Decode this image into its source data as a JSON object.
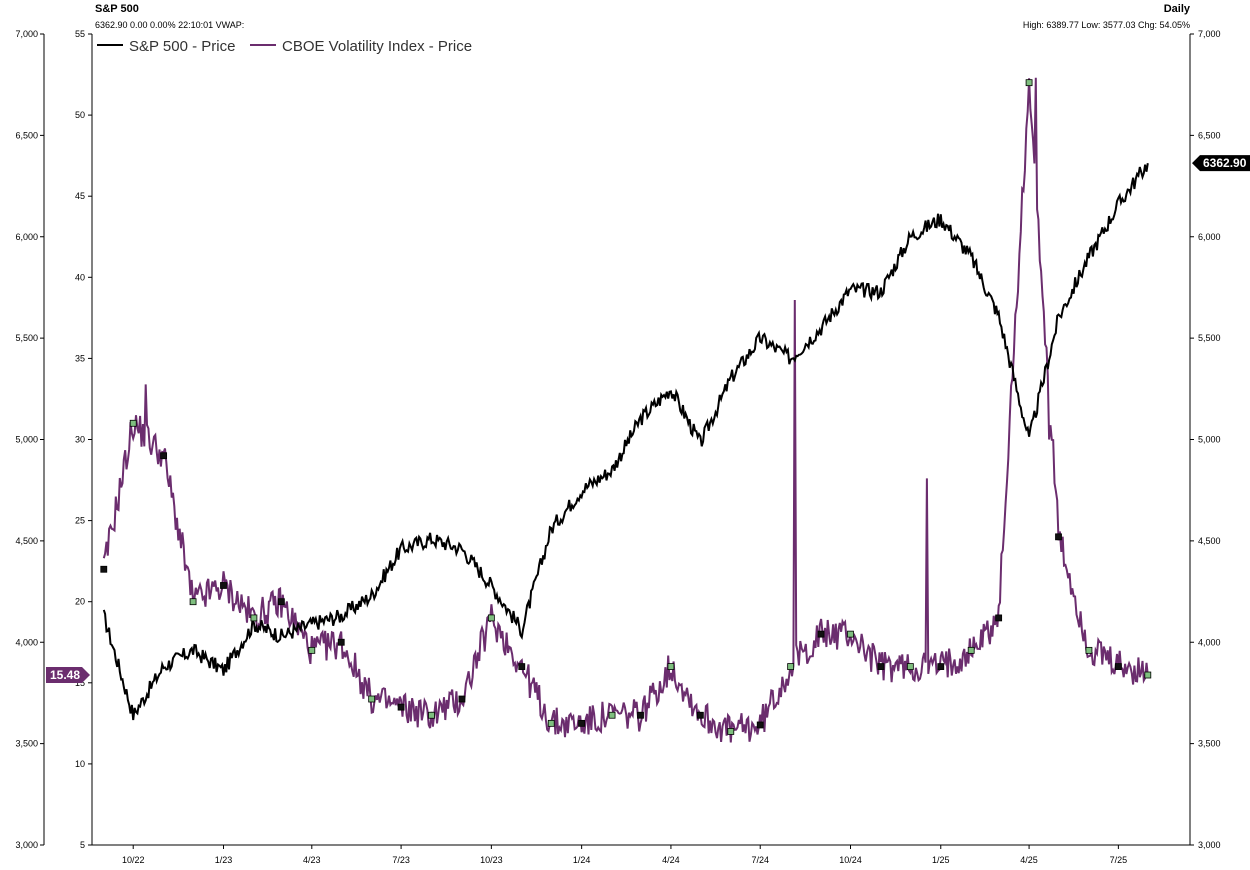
{
  "header": {
    "title": "S&P 500",
    "subtitle": "6362.90 0.00 0.00% 22:10:01 VWAP:",
    "frequency": "Daily",
    "stats": "High: 6389.77 Low: 3577.03 Chg: 54.05%"
  },
  "colors": {
    "spx": "#000000",
    "vix": "#6b2d6e",
    "axis": "#000000",
    "marker_fill": "#7fbf7f"
  },
  "chart_data": {
    "type": "line",
    "grid": false,
    "legend_placement": "top-left",
    "x": [
      "2022-09-01",
      "2022-10-01",
      "2022-11-01",
      "2022-12-01",
      "2023-01-01",
      "2023-02-01",
      "2023-03-01",
      "2023-04-01",
      "2023-05-01",
      "2023-06-01",
      "2023-07-01",
      "2023-08-01",
      "2023-09-01",
      "2023-10-01",
      "2023-11-01",
      "2023-12-01",
      "2024-01-01",
      "2024-02-01",
      "2024-03-01",
      "2024-04-01",
      "2024-05-01",
      "2024-06-01",
      "2024-07-01",
      "2024-08-01",
      "2024-09-01",
      "2024-10-01",
      "2024-11-01",
      "2024-12-01",
      "2025-01-01",
      "2025-02-01",
      "2025-03-01",
      "2025-04-01",
      "2025-05-01",
      "2025-06-01",
      "2025-07-01",
      "2025-07-31"
    ],
    "x_ticks": [
      "10/22",
      "1/23",
      "4/23",
      "7/23",
      "10/23",
      "1/24",
      "4/24",
      "7/24",
      "10/24",
      "1/25",
      "4/25",
      "7/25"
    ],
    "x_tick_dates": [
      "2022-10-01",
      "2023-01-01",
      "2023-04-01",
      "2023-07-01",
      "2023-10-01",
      "2024-01-01",
      "2024-04-01",
      "2024-07-01",
      "2024-10-01",
      "2025-01-01",
      "2025-04-01",
      "2025-07-01"
    ],
    "left_axis": {
      "ylim": [
        3000,
        7000
      ],
      "ticks": [
        "3,000",
        "3,500",
        "4,000",
        "4,500",
        "5,000",
        "5,500",
        "6,000",
        "6,500",
        "7,000"
      ],
      "tick_values": [
        3000,
        3500,
        4000,
        4500,
        5000,
        5500,
        6000,
        6500,
        7000
      ]
    },
    "inner_axis": {
      "ylim": [
        5,
        55
      ],
      "ticks": [
        "5",
        "10",
        "15",
        "20",
        "25",
        "30",
        "35",
        "40",
        "45",
        "50",
        "55"
      ],
      "tick_values": [
        5,
        10,
        15,
        20,
        25,
        30,
        35,
        40,
        45,
        50,
        55
      ]
    },
    "right_axis": {
      "ylim": [
        3000,
        7000
      ],
      "ticks": [
        "3,000",
        "3,500",
        "4,000",
        "4,500",
        "5,000",
        "5,500",
        "6,000",
        "6,500",
        "7,000"
      ],
      "tick_values": [
        3000,
        3500,
        4000,
        4500,
        5000,
        5500,
        6000,
        6500,
        7000
      ]
    },
    "series": [
      {
        "name": "S&P 500 - Price",
        "axis": "left",
        "values": [
          4130,
          3640,
          3880,
          3960,
          3860,
          4090,
          4030,
          4090,
          4130,
          4230,
          4460,
          4510,
          4460,
          4280,
          4060,
          4560,
          4750,
          4850,
          5100,
          5250,
          4980,
          5300,
          5500,
          5400,
          5550,
          5740,
          5730,
          6000,
          6090,
          5900,
          5610,
          5000,
          5600,
          5900,
          6160,
          6362.9
        ]
      },
      {
        "name": "CBOE Volatility Index - Price",
        "axis": "inner",
        "values": [
          22,
          31,
          29,
          20,
          21,
          19,
          20,
          17,
          17.5,
          14,
          13.5,
          13,
          14,
          19,
          16,
          12.5,
          12.5,
          13,
          13,
          16,
          13,
          12,
          12.4,
          16,
          18,
          18,
          16,
          16,
          16,
          17,
          19,
          52,
          24,
          17,
          16,
          15.48
        ]
      }
    ],
    "last_values": {
      "spx": "6362.90",
      "vix": "15.48"
    }
  }
}
